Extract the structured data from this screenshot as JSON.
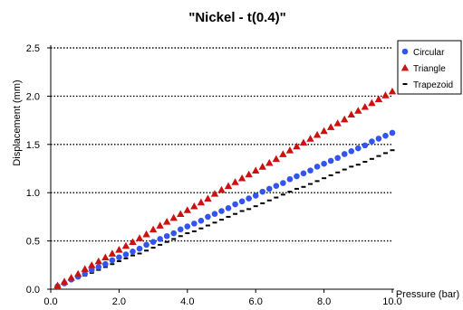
{
  "chart_data": {
    "type": "scatter",
    "title": "\"Nickel - t(0.4)\"",
    "xlabel": "Pressure (bar)",
    "ylabel": "Displacement (mm)",
    "xlim": [
      0,
      10
    ],
    "ylim": [
      0,
      2.5
    ],
    "x_ticks": [
      "0.0",
      "2.0",
      "4.0",
      "6.0",
      "8.0",
      "10.0"
    ],
    "y_ticks": [
      "0.0",
      "0.5",
      "1.0",
      "1.5",
      "2.0",
      "2.5"
    ],
    "grid": "horizontal dotted",
    "legend_position": "top-right",
    "x": [
      0.2,
      0.4,
      0.6,
      0.8,
      1.0,
      1.2,
      1.4,
      1.6,
      1.8,
      2.0,
      2.2,
      2.4,
      2.6,
      2.8,
      3.0,
      3.2,
      3.4,
      3.6,
      3.8,
      4.0,
      4.2,
      4.4,
      4.6,
      4.8,
      5.0,
      5.2,
      5.4,
      5.6,
      5.8,
      6.0,
      6.2,
      6.4,
      6.6,
      6.8,
      7.0,
      7.2,
      7.4,
      7.6,
      7.8,
      8.0,
      8.2,
      8.4,
      8.6,
      8.8,
      9.0,
      9.2,
      9.4,
      9.6,
      9.8,
      10.0
    ],
    "series": [
      {
        "name": "Circular",
        "marker": "circle",
        "color": "#3355ee",
        "values": [
          0.03,
          0.06,
          0.1,
          0.13,
          0.16,
          0.2,
          0.23,
          0.26,
          0.3,
          0.33,
          0.36,
          0.39,
          0.42,
          0.46,
          0.49,
          0.52,
          0.55,
          0.58,
          0.62,
          0.65,
          0.68,
          0.71,
          0.75,
          0.78,
          0.81,
          0.84,
          0.88,
          0.91,
          0.94,
          0.97,
          1.01,
          1.04,
          1.07,
          1.1,
          1.14,
          1.17,
          1.2,
          1.23,
          1.27,
          1.3,
          1.33,
          1.36,
          1.4,
          1.43,
          1.46,
          1.49,
          1.53,
          1.56,
          1.59,
          1.62
        ]
      },
      {
        "name": "Triangle",
        "marker": "triangle",
        "color": "#cc1111",
        "values": [
          0.04,
          0.08,
          0.12,
          0.16,
          0.21,
          0.25,
          0.29,
          0.33,
          0.37,
          0.41,
          0.45,
          0.49,
          0.53,
          0.57,
          0.62,
          0.66,
          0.7,
          0.74,
          0.78,
          0.82,
          0.86,
          0.9,
          0.94,
          0.99,
          1.03,
          1.07,
          1.11,
          1.15,
          1.19,
          1.23,
          1.27,
          1.31,
          1.35,
          1.4,
          1.44,
          1.48,
          1.52,
          1.56,
          1.6,
          1.64,
          1.68,
          1.72,
          1.76,
          1.81,
          1.85,
          1.89,
          1.93,
          1.97,
          2.01,
          2.05
        ]
      },
      {
        "name": "Trapezoid",
        "marker": "dash",
        "color": "#000000",
        "values": [
          0.03,
          0.06,
          0.09,
          0.12,
          0.14,
          0.17,
          0.2,
          0.23,
          0.26,
          0.29,
          0.32,
          0.35,
          0.37,
          0.4,
          0.43,
          0.46,
          0.49,
          0.52,
          0.55,
          0.58,
          0.6,
          0.63,
          0.66,
          0.69,
          0.72,
          0.75,
          0.78,
          0.81,
          0.83,
          0.86,
          0.89,
          0.92,
          0.95,
          0.98,
          1.01,
          1.04,
          1.06,
          1.09,
          1.12,
          1.15,
          1.18,
          1.21,
          1.24,
          1.27,
          1.29,
          1.32,
          1.35,
          1.38,
          1.41,
          1.44
        ]
      }
    ]
  }
}
